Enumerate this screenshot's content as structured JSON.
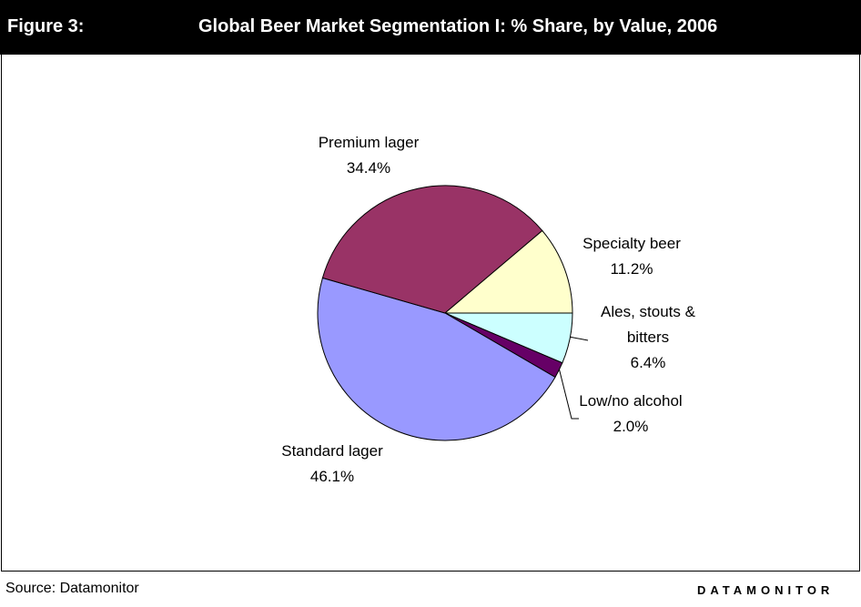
{
  "header": {
    "figure": "Figure 3:"
  },
  "chart_data": {
    "type": "pie",
    "title": "Global Beer Market Segmentation I: % Share, by Value, 2006",
    "categories": [
      "Ales, stouts & bitters",
      "Low/no alcohol",
      "Standard lager",
      "Premium lager",
      "Specialty beer"
    ],
    "values": [
      6.4,
      2.0,
      46.1,
      34.4,
      11.2
    ],
    "value_labels": [
      "6.4%",
      "2.0%",
      "46.1%",
      "34.4%",
      "11.2%"
    ],
    "colors": [
      "#ccffff",
      "#660066",
      "#9999ff",
      "#993366",
      "#ffffcc"
    ]
  },
  "footer": {
    "source": "Source: Datamonitor",
    "brand": "DATAMONITOR"
  }
}
